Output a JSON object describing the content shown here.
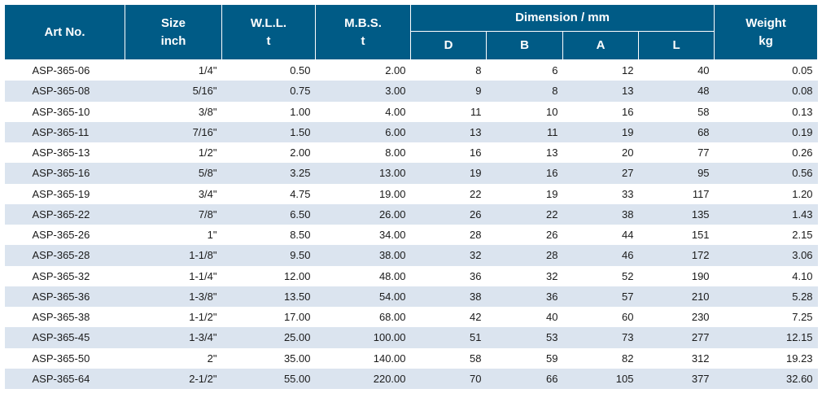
{
  "header": {
    "art_no": "Art No.",
    "size": [
      "Size",
      "inch"
    ],
    "wll": [
      "W.L.L.",
      "t"
    ],
    "mbs": [
      "M.B.S.",
      "t"
    ],
    "dimension": "Dimension / mm",
    "dims": [
      "D",
      "B",
      "A",
      "L"
    ],
    "weight": [
      "Weight",
      "kg"
    ]
  },
  "rows": [
    [
      "ASP-365-06",
      "1/4\"",
      "0.50",
      "2.00",
      "8",
      "6",
      "12",
      "40",
      "0.05"
    ],
    [
      "ASP-365-08",
      "5/16\"",
      "0.75",
      "3.00",
      "9",
      "8",
      "13",
      "48",
      "0.08"
    ],
    [
      "ASP-365-10",
      "3/8\"",
      "1.00",
      "4.00",
      "11",
      "10",
      "16",
      "58",
      "0.13"
    ],
    [
      "ASP-365-11",
      "7/16\"",
      "1.50",
      "6.00",
      "13",
      "11",
      "19",
      "68",
      "0.19"
    ],
    [
      "ASP-365-13",
      "1/2\"",
      "2.00",
      "8.00",
      "16",
      "13",
      "20",
      "77",
      "0.26"
    ],
    [
      "ASP-365-16",
      "5/8\"",
      "3.25",
      "13.00",
      "19",
      "16",
      "27",
      "95",
      "0.56"
    ],
    [
      "ASP-365-19",
      "3/4\"",
      "4.75",
      "19.00",
      "22",
      "19",
      "33",
      "117",
      "1.20"
    ],
    [
      "ASP-365-22",
      "7/8\"",
      "6.50",
      "26.00",
      "26",
      "22",
      "38",
      "135",
      "1.43"
    ],
    [
      "ASP-365-26",
      "1\"",
      "8.50",
      "34.00",
      "28",
      "26",
      "44",
      "151",
      "2.15"
    ],
    [
      "ASP-365-28",
      "1-1/8\"",
      "9.50",
      "38.00",
      "32",
      "28",
      "46",
      "172",
      "3.06"
    ],
    [
      "ASP-365-32",
      "1-1/4\"",
      "12.00",
      "48.00",
      "36",
      "32",
      "52",
      "190",
      "4.10"
    ],
    [
      "ASP-365-36",
      "1-3/8\"",
      "13.50",
      "54.00",
      "38",
      "36",
      "57",
      "210",
      "5.28"
    ],
    [
      "ASP-365-38",
      "1-1/2\"",
      "17.00",
      "68.00",
      "42",
      "40",
      "60",
      "230",
      "7.25"
    ],
    [
      "ASP-365-45",
      "1-3/4\"",
      "25.00",
      "100.00",
      "51",
      "53",
      "73",
      "277",
      "12.15"
    ],
    [
      "ASP-365-50",
      "2\"",
      "35.00",
      "140.00",
      "58",
      "59",
      "82",
      "312",
      "19.23"
    ],
    [
      "ASP-365-64",
      "2-1/2\"",
      "55.00",
      "220.00",
      "70",
      "66",
      "105",
      "377",
      "32.60"
    ]
  ],
  "colors": {
    "header_bg": "#005b86",
    "stripe": "#dbe4ef"
  }
}
